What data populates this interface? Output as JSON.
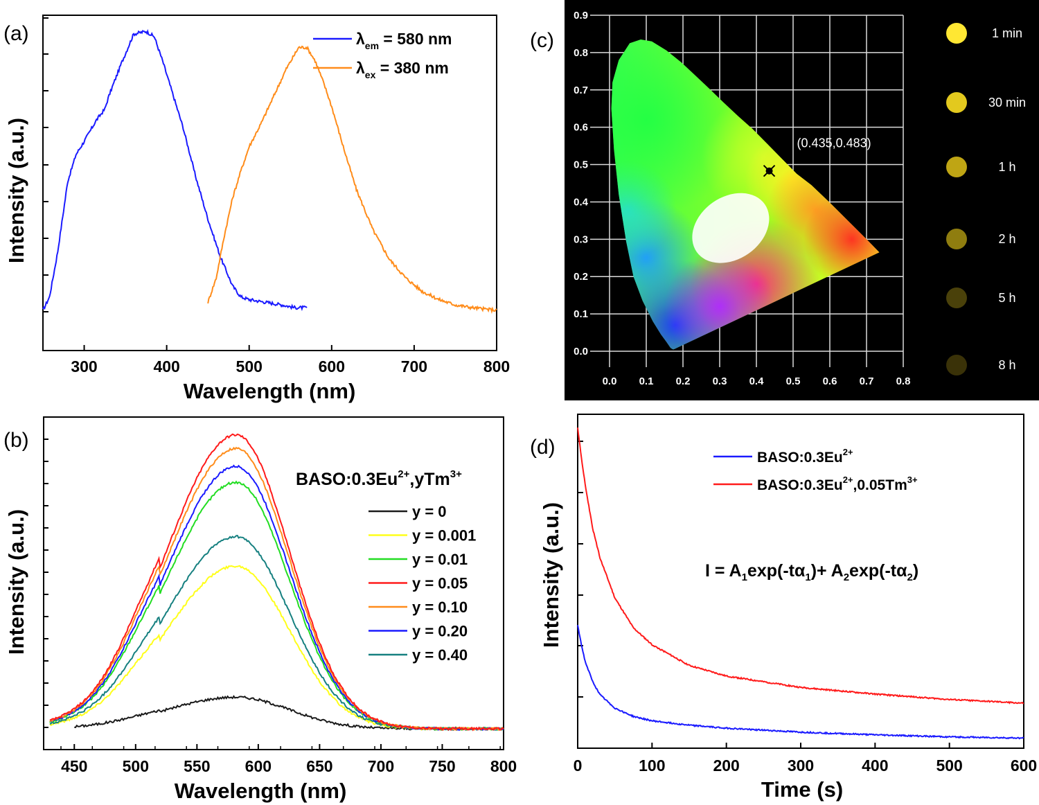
{
  "chart_data": [
    {
      "panel": "(a)",
      "type": "line",
      "xlabel": "Wavelength (nm)",
      "ylabel": "Intensity (a.u.)",
      "xlim": [
        250,
        800
      ],
      "ylim": [
        -0.15,
        1.1
      ],
      "xticks": [
        300,
        400,
        500,
        600,
        700,
        800
      ],
      "grid": false,
      "legend": "top-right",
      "series": [
        {
          "name_main": "λ",
          "name_sub": "em",
          "name_rest": " = 580 nm",
          "color": "#1a1aff",
          "x": [
            250,
            258,
            268,
            280,
            290,
            300,
            315,
            325,
            330,
            345,
            360,
            375,
            385,
            395,
            405,
            420,
            435,
            450,
            465,
            480,
            490,
            500,
            520,
            540,
            555,
            570
          ],
          "y": [
            0.0,
            0.05,
            0.22,
            0.48,
            0.58,
            0.63,
            0.71,
            0.75,
            0.8,
            0.92,
            1.03,
            1.04,
            1.02,
            0.93,
            0.83,
            0.68,
            0.5,
            0.34,
            0.2,
            0.09,
            0.05,
            0.04,
            0.03,
            0.02,
            0.01,
            0.01
          ]
        },
        {
          "name_main": "λ",
          "name_sub": "ex",
          "name_rest": " = 380 nm",
          "color": "#ff8c1a",
          "x": [
            450,
            460,
            470,
            480,
            490,
            500,
            515,
            530,
            545,
            560,
            570,
            580,
            590,
            600,
            615,
            630,
            650,
            670,
            690,
            710,
            730,
            750,
            770,
            800
          ],
          "y": [
            0.03,
            0.12,
            0.28,
            0.42,
            0.52,
            0.61,
            0.7,
            0.8,
            0.9,
            0.98,
            0.98,
            0.93,
            0.85,
            0.76,
            0.6,
            0.45,
            0.3,
            0.19,
            0.12,
            0.07,
            0.04,
            0.02,
            0.01,
            0.0
          ]
        }
      ]
    },
    {
      "panel": "(b)",
      "type": "line",
      "xlabel": "Wavelength (nm)",
      "ylabel": "Intensity (a.u.)",
      "xlim": [
        425,
        800
      ],
      "ylim": [
        -0.07,
        1.05
      ],
      "xticks": [
        450,
        500,
        550,
        600,
        650,
        700,
        750,
        800
      ],
      "grid": false,
      "legend": "right",
      "legend_title_main": "BASO:0.3Eu",
      "legend_title_sup1": "2+",
      "legend_title_mid": ",yTm",
      "legend_title_sup2": "3+",
      "peak_x": 582,
      "series": [
        {
          "name": "y = 0",
          "color": "#1a1a1a",
          "peak": 0.14,
          "x_start": 450
        },
        {
          "name": "y = 0.001",
          "color": "#ffff1a",
          "peak": 0.72,
          "x_start": 430
        },
        {
          "name": "y = 0.01",
          "color": "#22dd22",
          "peak": 1.09,
          "x_start": 430
        },
        {
          "name": "y = 0.05",
          "color": "#ff1a1a",
          "peak": 1.3,
          "x_start": 430
        },
        {
          "name": "y = 0.10",
          "color": "#ff8c1a",
          "peak": 1.24,
          "x_start": 430
        },
        {
          "name": "y = 0.20",
          "color": "#1a1aff",
          "peak": 1.16,
          "x_start": 430
        },
        {
          "name": "y = 0.40",
          "color": "#168080",
          "peak": 0.85,
          "x_start": 430
        }
      ]
    },
    {
      "panel": "(c)",
      "type": "scatter",
      "xlim": [
        0.0,
        0.8
      ],
      "ylim": [
        0.0,
        0.9
      ],
      "xticks": [
        "0.0",
        "0.1",
        "0.2",
        "0.3",
        "0.4",
        "0.5",
        "0.6",
        "0.7",
        "0.8"
      ],
      "yticks": [
        "0.0",
        "0.1",
        "0.2",
        "0.3",
        "0.4",
        "0.5",
        "0.6",
        "0.7",
        "0.8",
        "0.9"
      ],
      "grid": true,
      "point": {
        "x": 0.435,
        "y": 0.483,
        "label": "(0.435,0.483)"
      },
      "afterglow": [
        {
          "label": "1 min",
          "color": "#ffe733"
        },
        {
          "label": "30 min",
          "color": "#e3c91e"
        },
        {
          "label": "1 h",
          "color": "#bfa514"
        },
        {
          "label": "2 h",
          "color": "#8f7d0f"
        },
        {
          "label": "5 h",
          "color": "#4a410a"
        },
        {
          "label": "8 h",
          "color": "#3a3208"
        }
      ]
    },
    {
      "panel": "(d)",
      "type": "line",
      "xlabel": "Time (s)",
      "ylabel": "Intensity (a.u.)",
      "xlim": [
        0,
        600
      ],
      "ylim": [
        0,
        1.0
      ],
      "xticks": [
        0,
        100,
        200,
        300,
        400,
        500,
        600
      ],
      "grid": false,
      "legend": "top-right",
      "equation": {
        "a": "I = A",
        "s1": "1",
        "b": "exp(-tα",
        "s2": "1",
        "c": ")+ A",
        "s3": "2",
        "d": "exp(-tα",
        "s4": "2",
        "e": ")"
      },
      "series": [
        {
          "name_main": "BASO:0.3Eu",
          "sup1": "2+",
          "rest": "",
          "sup2": "",
          "color": "#1a1aff",
          "t": [
            0,
            5,
            10,
            20,
            30,
            50,
            75,
            100,
            150,
            200,
            300,
            400,
            500,
            600
          ],
          "y": [
            0.37,
            0.31,
            0.26,
            0.2,
            0.16,
            0.12,
            0.095,
            0.082,
            0.069,
            0.06,
            0.048,
            0.04,
            0.034,
            0.03
          ]
        },
        {
          "name_main": "BASO:0.3Eu",
          "sup1": "2+",
          "rest": ",0.05Tm",
          "sup2": "3+",
          "color": "#ff1a1a",
          "t": [
            0,
            5,
            10,
            20,
            30,
            50,
            75,
            100,
            150,
            200,
            300,
            400,
            500,
            600
          ],
          "y": [
            0.96,
            0.87,
            0.79,
            0.66,
            0.57,
            0.45,
            0.36,
            0.31,
            0.248,
            0.216,
            0.182,
            0.162,
            0.146,
            0.135
          ]
        }
      ]
    }
  ],
  "panel_labels": [
    "(a)",
    "(b)",
    "(c)",
    "(d)"
  ]
}
